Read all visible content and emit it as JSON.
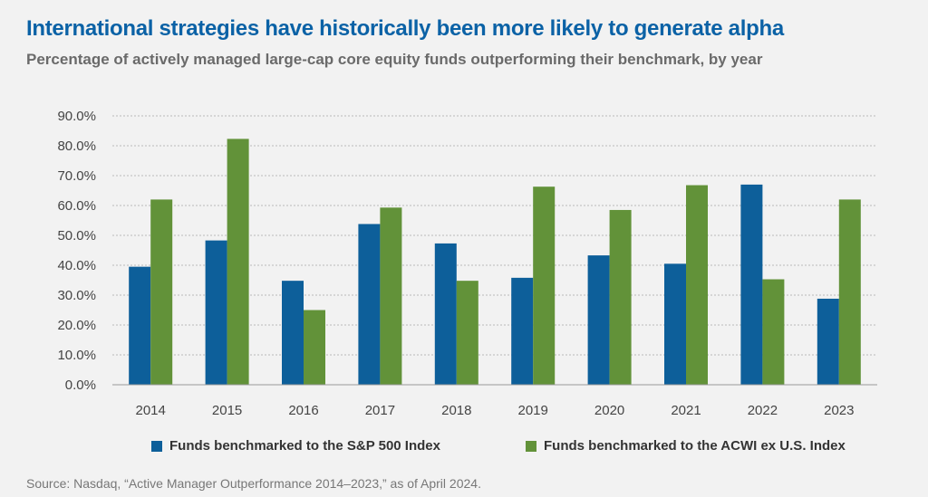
{
  "title": "International strategies have historically been more likely to generate alpha",
  "subtitle": "Percentage of actively managed large-cap core equity funds outperforming their benchmark, by year",
  "source": "Source: Nasdaq, “Active Manager Outperformance 2014–2023,” as of April 2024.",
  "colors": {
    "series_1": "#0d5f9a",
    "series_2": "#629239",
    "grid": "#b9b9b9",
    "axis_text": "#444444",
    "title": "#0b62a6"
  },
  "chart_data": {
    "type": "bar",
    "categories": [
      "2014",
      "2015",
      "2016",
      "2017",
      "2018",
      "2019",
      "2020",
      "2021",
      "2022",
      "2023"
    ],
    "series": [
      {
        "name": "Funds benchmarked to the S&P 500 Index",
        "values": [
          39.5,
          48.3,
          34.8,
          53.8,
          47.3,
          35.8,
          43.3,
          40.5,
          67.0,
          28.8
        ]
      },
      {
        "name": "Funds benchmarked to the ACWI ex U.S. Index",
        "values": [
          62.0,
          82.3,
          25.0,
          59.3,
          34.8,
          66.3,
          58.5,
          66.8,
          35.3,
          62.0
        ]
      }
    ],
    "yticks": [
      "0.0%",
      "10.0%",
      "20.0%",
      "30.0%",
      "40.0%",
      "50.0%",
      "60.0%",
      "70.0%",
      "80.0%",
      "90.0%"
    ],
    "ylim": [
      0,
      90
    ],
    "grid": true,
    "legend_position": "bottom"
  }
}
